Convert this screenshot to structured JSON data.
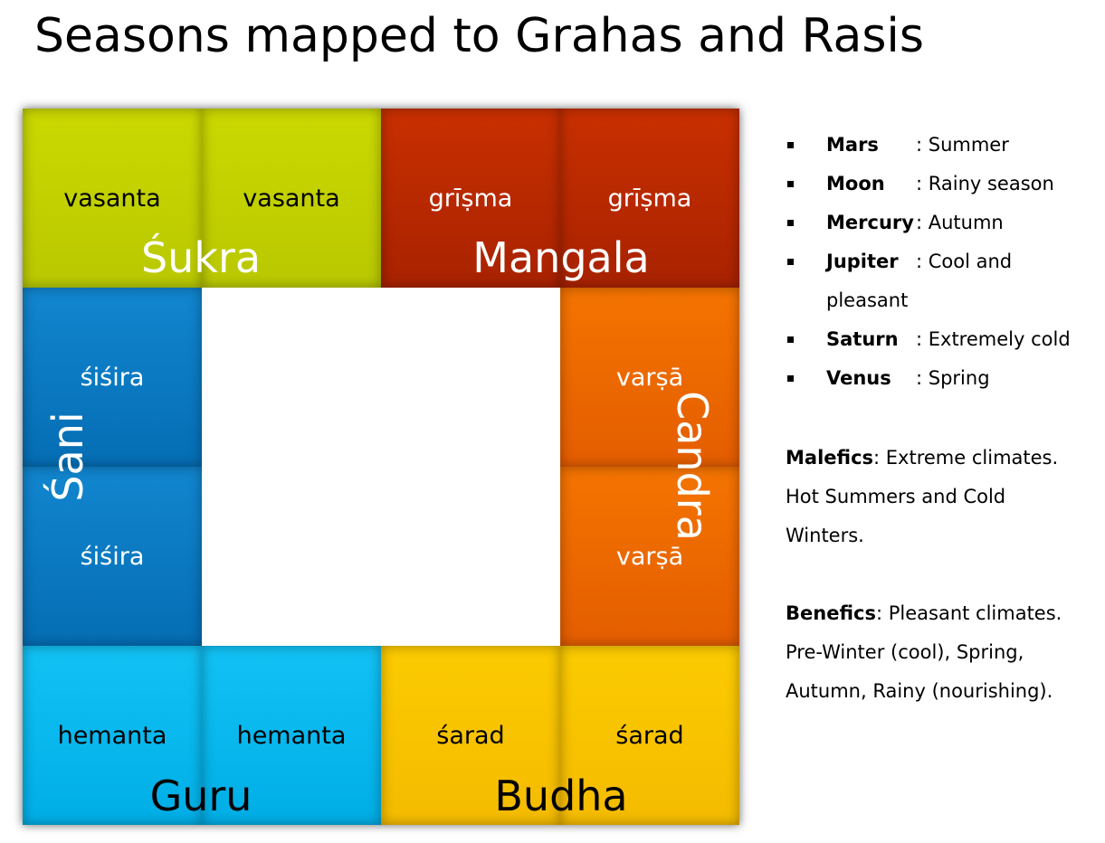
{
  "title": "Seasons mapped to Grahas and Rasis",
  "cells": [
    "vasanta",
    "vasanta",
    "grīṣma",
    "grīṣma",
    "śiśira",
    "varṣā",
    "śiśira",
    "varṣā",
    "hemanta",
    "hemanta",
    "śarad",
    "śarad"
  ],
  "grahas": [
    "Śukra",
    "Mangala",
    "Śani",
    "Candra",
    "Guru",
    "Budha"
  ],
  "legend": [
    {
      "planet": "Mars",
      "meaning": ": Summer"
    },
    {
      "planet": "Moon",
      "meaning": ": Rainy season"
    },
    {
      "planet": "Mercury",
      "meaning": ": Autumn"
    },
    {
      "planet": "Jupiter",
      "meaning": ": Cool and pleasant"
    },
    {
      "planet": "Saturn",
      "meaning": ": Extremely cold"
    },
    {
      "planet": "Venus",
      "meaning": ": Spring"
    }
  ],
  "notes": [
    {
      "term": "Malefics",
      "text": ": Extreme climates. Hot Summers and Cold Winters."
    },
    {
      "term": "Benefics",
      "text": ": Pleasant climates. Pre-Winter (cool), Spring, Autumn, Rainy (nourishing)."
    }
  ]
}
